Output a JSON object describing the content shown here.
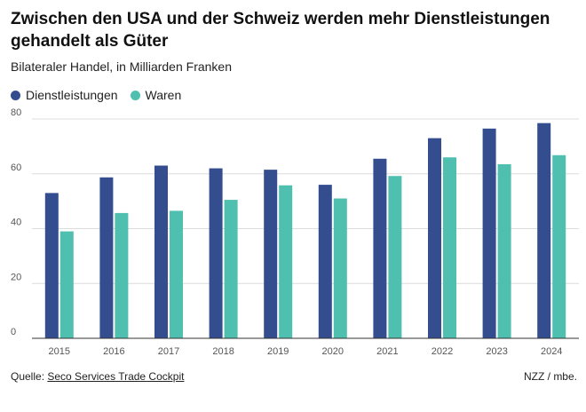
{
  "header": {
    "title": "Zwischen den USA und der Schweiz werden mehr Dienstleistungen gehandelt als Güter",
    "subtitle": "Bilateraler Handel, in Milliarden Franken"
  },
  "legend": {
    "items": [
      {
        "label": "Dienstleistungen",
        "color": "#334d8f"
      },
      {
        "label": "Waren",
        "color": "#4fbfaf"
      }
    ]
  },
  "footer": {
    "source_prefix": "Quelle:",
    "source_link": "Seco Services Trade Cockpit",
    "credit": "NZZ / mbe."
  },
  "chart_data": {
    "type": "bar",
    "title": "Zwischen den USA und der Schweiz werden mehr Dienstleistungen gehandelt als Güter",
    "subtitle": "Bilateraler Handel, in Milliarden Franken",
    "xlabel": "",
    "ylabel": "",
    "categories": [
      "2015",
      "2016",
      "2017",
      "2018",
      "2019",
      "2020",
      "2021",
      "2022",
      "2023",
      "2024"
    ],
    "series": [
      {
        "name": "Dienstleistungen",
        "color": "#334d8f",
        "values": [
          53,
          58.7,
          63,
          62,
          61.5,
          56,
          65.5,
          73,
          76.5,
          78.5
        ]
      },
      {
        "name": "Waren",
        "color": "#4fbfaf",
        "values": [
          39,
          45.7,
          46.5,
          50.5,
          55.8,
          51,
          59.2,
          66,
          63.5,
          66.8
        ]
      }
    ],
    "ylim": [
      0,
      80
    ],
    "yticks": [
      0,
      20,
      40,
      60,
      80
    ],
    "grid": true,
    "legend_position": "top-left"
  }
}
